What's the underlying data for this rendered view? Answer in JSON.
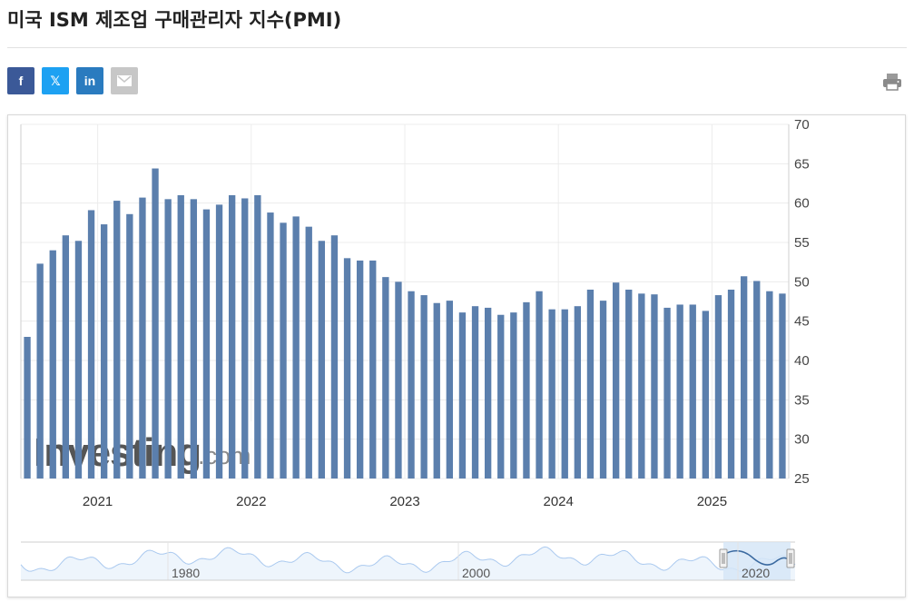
{
  "page": {
    "title": "미국 ISM 제조업 구매관리자 지수(PMI)"
  },
  "share": {
    "facebook_label": "f",
    "x_label": "𝕏",
    "linkedin_label": "in",
    "email_icon": "envelope-icon",
    "print_icon": "printer-icon"
  },
  "colors": {
    "bar": "#5b7fad",
    "accent": "#3b5998",
    "navigator_fill": "#d6e6f7",
    "navigator_line": "#aac9ef"
  },
  "watermark": {
    "brand": "Investing",
    "suffix": ".com"
  },
  "chart_data": {
    "type": "bar",
    "y_ticks": [
      "70",
      "65",
      "60",
      "55",
      "50",
      "45",
      "40",
      "35",
      "30",
      "25"
    ],
    "ylim": [
      25,
      70
    ],
    "y_axis_side": "right",
    "x_tick_labels": [
      "2021",
      "2022",
      "2023",
      "2024",
      "2025"
    ],
    "x_tick_bar_index": [
      6,
      18,
      30,
      42,
      54
    ],
    "grid": true,
    "legend": "none",
    "values": [
      43.0,
      52.3,
      54.0,
      55.9,
      55.2,
      59.1,
      57.3,
      60.3,
      58.6,
      60.7,
      64.4,
      60.5,
      61.0,
      60.5,
      59.2,
      59.8,
      61.0,
      60.6,
      61.0,
      58.8,
      57.5,
      58.3,
      57.0,
      55.2,
      55.9,
      53.0,
      52.7,
      52.7,
      50.6,
      50.0,
      48.8,
      48.3,
      47.3,
      47.6,
      46.1,
      46.9,
      46.7,
      45.8,
      46.1,
      47.4,
      48.8,
      46.5,
      46.5,
      46.9,
      49.0,
      47.6,
      49.9,
      49.0,
      48.5,
      48.4,
      46.7,
      47.1,
      47.1,
      46.3,
      48.3,
      49.0,
      50.7,
      50.1,
      48.8,
      48.5
    ],
    "navigator": {
      "x_labels": [
        "1980",
        "2000",
        "2020"
      ]
    }
  }
}
